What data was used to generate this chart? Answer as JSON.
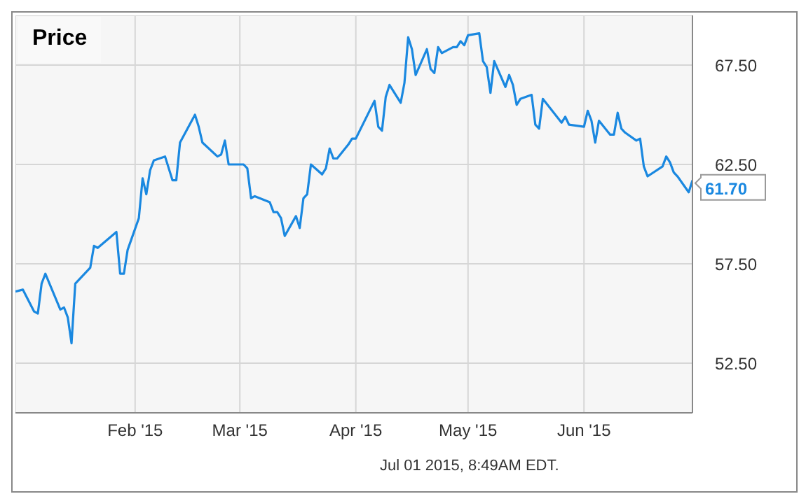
{
  "chart_data": {
    "type": "line",
    "title": "Price",
    "x": [
      "2014-12-31",
      "2015-01-02",
      "2015-01-05",
      "2015-01-06",
      "2015-01-07",
      "2015-01-08",
      "2015-01-12",
      "2015-01-13",
      "2015-01-14",
      "2015-01-15",
      "2015-01-16",
      "2015-01-20",
      "2015-01-21",
      "2015-01-22",
      "2015-01-27",
      "2015-01-28",
      "2015-01-29",
      "2015-01-30",
      "2015-02-02",
      "2015-02-03",
      "2015-02-04",
      "2015-02-05",
      "2015-02-06",
      "2015-02-09",
      "2015-02-11",
      "2015-02-12",
      "2015-02-13",
      "2015-02-17",
      "2015-02-18",
      "2015-02-19",
      "2015-02-23",
      "2015-02-24",
      "2015-02-25",
      "2015-02-26",
      "2015-03-02",
      "2015-03-03",
      "2015-03-04",
      "2015-03-05",
      "2015-03-09",
      "2015-03-10",
      "2015-03-11",
      "2015-03-12",
      "2015-03-13",
      "2015-03-16",
      "2015-03-17",
      "2015-03-18",
      "2015-03-19",
      "2015-03-20",
      "2015-03-23",
      "2015-03-24",
      "2015-03-25",
      "2015-03-26",
      "2015-03-27",
      "2015-03-30",
      "2015-03-31",
      "2015-04-01",
      "2015-04-06",
      "2015-04-07",
      "2015-04-08",
      "2015-04-09",
      "2015-04-10",
      "2015-04-13",
      "2015-04-14",
      "2015-04-15",
      "2015-04-16",
      "2015-04-17",
      "2015-04-20",
      "2015-04-21",
      "2015-04-22",
      "2015-04-23",
      "2015-04-24",
      "2015-04-27",
      "2015-04-28",
      "2015-04-29",
      "2015-04-30",
      "2015-05-01",
      "2015-05-04",
      "2015-05-05",
      "2015-05-06",
      "2015-05-07",
      "2015-05-08",
      "2015-05-11",
      "2015-05-12",
      "2015-05-13",
      "2015-05-14",
      "2015-05-15",
      "2015-05-18",
      "2015-05-19",
      "2015-05-20",
      "2015-05-21",
      "2015-05-26",
      "2015-05-27",
      "2015-05-28",
      "2015-06-01",
      "2015-06-02",
      "2015-06-03",
      "2015-06-04",
      "2015-06-05",
      "2015-06-08",
      "2015-06-09",
      "2015-06-10",
      "2015-06-11",
      "2015-06-12",
      "2015-06-15",
      "2015-06-16",
      "2015-06-17",
      "2015-06-18",
      "2015-06-22",
      "2015-06-23",
      "2015-06-24",
      "2015-06-25",
      "2015-06-26",
      "2015-06-29",
      "2015-06-30"
    ],
    "series": [
      {
        "color": "#1a88e0",
        "values": [
          56.1,
          56.2,
          55.1,
          55.0,
          56.5,
          57.0,
          55.2,
          55.3,
          54.8,
          53.5,
          56.5,
          57.3,
          58.4,
          58.3,
          59.1,
          57.0,
          57.0,
          58.2,
          59.8,
          61.8,
          61.0,
          62.2,
          62.7,
          62.9,
          61.7,
          61.7,
          63.6,
          65.0,
          64.4,
          63.6,
          62.9,
          63.0,
          63.7,
          62.5,
          62.5,
          62.3,
          60.8,
          60.9,
          60.6,
          60.1,
          60.1,
          59.8,
          58.9,
          59.9,
          59.3,
          60.8,
          61.0,
          62.5,
          62.0,
          62.3,
          63.3,
          62.8,
          62.8,
          63.5,
          63.8,
          63.8,
          65.7,
          64.4,
          64.2,
          65.9,
          66.5,
          65.6,
          66.6,
          68.9,
          68.3,
          67.0,
          68.3,
          67.3,
          67.1,
          68.4,
          68.1,
          68.4,
          68.4,
          68.7,
          68.5,
          69.0,
          69.1,
          67.7,
          67.4,
          66.1,
          67.7,
          66.4,
          67.0,
          66.5,
          65.5,
          65.8,
          66.0,
          64.5,
          64.3,
          65.8,
          64.6,
          64.9,
          64.5,
          64.4,
          65.2,
          64.7,
          63.6,
          64.7,
          64.0,
          64.0,
          65.1,
          64.3,
          64.1,
          63.7,
          63.8,
          62.4,
          61.9,
          62.4,
          62.9,
          62.6,
          62.1,
          61.9,
          61.1,
          61.7
        ],
        "value_labels": [
          null,
          null,
          null,
          null,
          null,
          null,
          null,
          null,
          null,
          null,
          null,
          null,
          null,
          null,
          null,
          null,
          null,
          null,
          null,
          null,
          null,
          null,
          null,
          null,
          null,
          null,
          null,
          null,
          null,
          null,
          null,
          null,
          null,
          null,
          null,
          null,
          null,
          null,
          null,
          null,
          null,
          null,
          null,
          null,
          null,
          null,
          null,
          null,
          null,
          null,
          null,
          null,
          null,
          null,
          null,
          null,
          null,
          null,
          null,
          null,
          null,
          null,
          null,
          null,
          null,
          null,
          null,
          null,
          null,
          null,
          null,
          null,
          null,
          null,
          null,
          null,
          null,
          null,
          null,
          null,
          null,
          null,
          null,
          null,
          null,
          null,
          null,
          null,
          null,
          null,
          null,
          null,
          null,
          null,
          null,
          null,
          null,
          null,
          null,
          null,
          null,
          null,
          null,
          null,
          null,
          null,
          null,
          null,
          null,
          null,
          null,
          null,
          null,
          "61.70"
        ]
      }
    ],
    "xlim": [
      "2014-12-31",
      "2015-06-30"
    ],
    "xticks": [
      {
        "value": "2015-02-01",
        "label": "Feb '15"
      },
      {
        "value": "2015-03-01",
        "label": "Mar '15"
      },
      {
        "value": "2015-04-01",
        "label": "Apr '15"
      },
      {
        "value": "2015-05-01",
        "label": "May '15"
      },
      {
        "value": "2015-06-01",
        "label": "Jun '15"
      }
    ],
    "ylim": [
      50,
      70
    ],
    "yticks": [
      {
        "value": 52.5,
        "label": "52.50"
      },
      {
        "value": 57.5,
        "label": "57.50"
      },
      {
        "value": 62.5,
        "label": "62.50"
      },
      {
        "value": 67.5,
        "label": "67.50"
      }
    ],
    "grid": true,
    "marker": "none",
    "line_style": "solid",
    "annotations": [
      "Jul 01 2015, 8:49AM EDT."
    ]
  }
}
